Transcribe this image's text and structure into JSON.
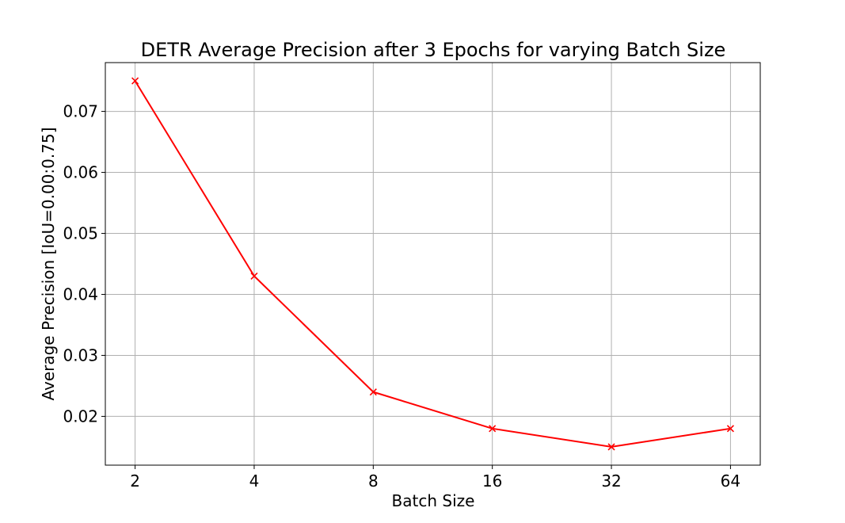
{
  "chart_data": {
    "type": "line",
    "title": "DETR Average Precision after 3 Epochs for varying Batch Size",
    "xlabel": "Batch Size",
    "ylabel": "Average Precision [IoU=0.00:0.75]",
    "x_scale": "log2",
    "categories": [
      "2",
      "4",
      "8",
      "16",
      "32",
      "64"
    ],
    "x": [
      2,
      4,
      8,
      16,
      32,
      64
    ],
    "series": [
      {
        "values": [
          0.075,
          0.043,
          0.024,
          0.018,
          0.015,
          0.018
        ],
        "color": "#ff0000",
        "marker": "x"
      }
    ],
    "yticks": [
      "0.02",
      "0.03",
      "0.04",
      "0.05",
      "0.06",
      "0.07"
    ],
    "ytick_values": [
      0.02,
      0.03,
      0.04,
      0.05,
      0.06,
      0.07
    ],
    "ylim": [
      0.012,
      0.078
    ],
    "grid": true,
    "legend": "none"
  }
}
